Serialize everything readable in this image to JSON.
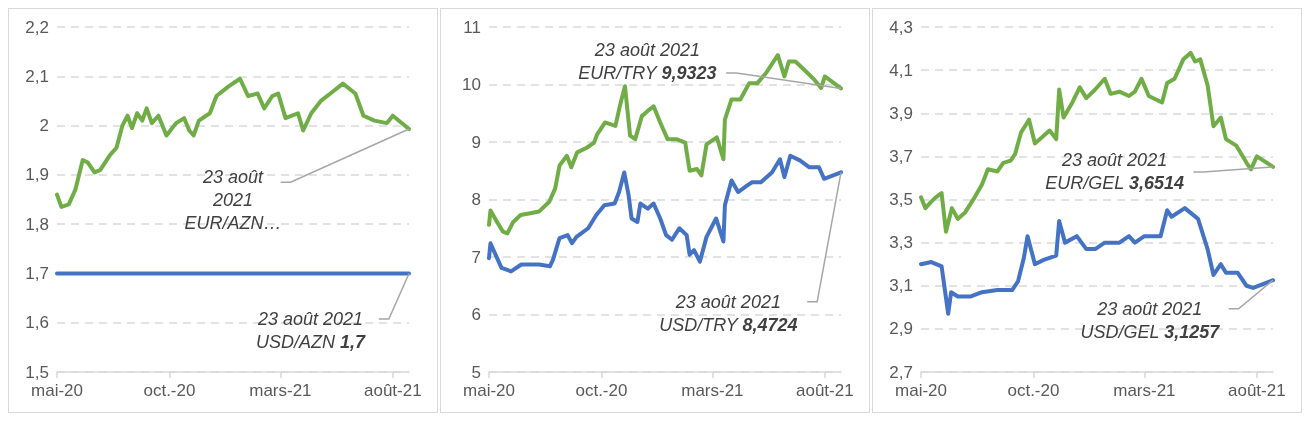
{
  "chart_data": [
    {
      "type": "line",
      "xlim": [
        "2020-05-01",
        "2021-08-23"
      ],
      "xticks": [
        {
          "value": "2020-05-01",
          "label": "mai-20"
        },
        {
          "value": "2020-10-01",
          "label": "oct.-20"
        },
        {
          "value": "2021-03-01",
          "label": "mars-21"
        },
        {
          "value": "2021-08-01",
          "label": "août-21"
        }
      ],
      "ylim": [
        1.5,
        2.2
      ],
      "yticks": [
        {
          "value": 1.5,
          "label": "1,5"
        },
        {
          "value": 1.6,
          "label": "1,6"
        },
        {
          "value": 1.7,
          "label": "1,7"
        },
        {
          "value": 1.8,
          "label": "1,8"
        },
        {
          "value": 1.9,
          "label": "1,9"
        },
        {
          "value": 2,
          "label": "2"
        },
        {
          "value": 2.1,
          "label": "2,1"
        },
        {
          "value": 2.2,
          "label": "2,2"
        }
      ],
      "grid": "y",
      "marker": "none",
      "line_style": "solid",
      "series": [
        {
          "color": "#70ad47",
          "x": [
            "2020-05-01",
            "2020-05-07",
            "2020-05-17",
            "2020-05-26",
            "2020-06-05",
            "2020-06-12",
            "2020-06-21",
            "2020-06-29",
            "2020-07-12",
            "2020-07-21",
            "2020-07-29",
            "2020-08-05",
            "2020-08-11",
            "2020-08-18",
            "2020-08-25",
            "2020-08-31",
            "2020-09-07",
            "2020-09-16",
            "2020-09-27",
            "2020-10-10",
            "2020-10-21",
            "2020-10-28",
            "2020-11-03",
            "2020-11-10",
            "2020-11-25",
            "2020-12-04",
            "2020-12-21",
            "2021-01-05",
            "2021-01-16",
            "2021-01-29",
            "2021-02-07",
            "2021-02-18",
            "2021-02-26",
            "2021-03-08",
            "2021-03-25",
            "2021-04-01",
            "2021-04-12",
            "2021-04-25",
            "2021-05-08",
            "2021-05-25",
            "2021-06-11",
            "2021-06-22",
            "2021-07-07",
            "2021-07-24",
            "2021-08-01",
            "2021-08-23"
          ],
          "values": [
            1.86,
            1.835,
            1.84,
            1.87,
            1.93,
            1.925,
            1.905,
            1.91,
            1.94,
            1.955,
            2.0,
            2.02,
            1.995,
            2.025,
            2.01,
            2.035,
            2.005,
            2.02,
            1.98,
            2.005,
            2.015,
            1.99,
            1.98,
            2.01,
            2.025,
            2.06,
            2.08,
            2.095,
            2.06,
            2.065,
            2.035,
            2.06,
            2.065,
            2.015,
            2.025,
            1.99,
            2.025,
            2.05,
            2.065,
            2.085,
            2.065,
            2.02,
            2.01,
            2.005,
            2.02,
            1.993
          ]
        },
        {
          "color": "#4472c4",
          "x": [
            "2020-05-01",
            "2021-08-23"
          ],
          "values": [
            1.7,
            1.7
          ]
        }
      ],
      "annotations": [
        {
          "text": "23 août\n2021\nEUR/AZN…",
          "x": "2021-08-23",
          "y": 1.993
        },
        {
          "text": "23 août 2021\nUSD/AZN 1,7",
          "x": "2021-08-23",
          "y": 1.7
        }
      ]
    },
    {
      "type": "line",
      "xlim": [
        "2020-05-01",
        "2021-08-23"
      ],
      "xticks": [
        {
          "value": "2020-05-01",
          "label": "mai-20"
        },
        {
          "value": "2020-10-01",
          "label": "oct.-20"
        },
        {
          "value": "2021-03-01",
          "label": "mars-21"
        },
        {
          "value": "2021-08-01",
          "label": "août-21"
        }
      ],
      "ylim": [
        5,
        11
      ],
      "yticks": [
        5,
        6,
        7,
        8,
        9,
        10,
        11
      ],
      "grid": "y",
      "marker": "none",
      "line_style": "solid",
      "series": [
        {
          "color": "#70ad47",
          "x": [
            "2020-05-01",
            "2020-05-03",
            "2020-05-12",
            "2020-05-20",
            "2020-05-26",
            "2020-06-03",
            "2020-06-13",
            "2020-06-26",
            "2020-07-08",
            "2020-07-22",
            "2020-07-30",
            "2020-08-05",
            "2020-08-15",
            "2020-08-21",
            "2020-08-29",
            "2020-09-11",
            "2020-09-21",
            "2020-09-25",
            "2020-10-06",
            "2020-10-20",
            "2020-10-26",
            "2020-11-02",
            "2020-11-09",
            "2020-11-16",
            "2020-11-25",
            "2020-12-03",
            "2020-12-11",
            "2020-12-20",
            "2020-12-30",
            "2021-01-11",
            "2021-01-23",
            "2021-01-29",
            "2021-02-08",
            "2021-02-14",
            "2021-02-21",
            "2021-03-07",
            "2021-03-16",
            "2021-03-18",
            "2021-03-27",
            "2021-04-08",
            "2021-04-20",
            "2021-05-01",
            "2021-05-13",
            "2021-05-29",
            "2021-06-07",
            "2021-06-13",
            "2021-06-22",
            "2021-07-06",
            "2021-07-18",
            "2021-07-27",
            "2021-08-01",
            "2021-08-23"
          ],
          "values": [
            7.56,
            7.81,
            7.61,
            7.44,
            7.41,
            7.61,
            7.73,
            7.76,
            7.79,
            7.96,
            8.19,
            8.59,
            8.76,
            8.56,
            8.82,
            8.9,
            8.99,
            9.13,
            9.34,
            9.28,
            9.62,
            9.97,
            9.11,
            9.05,
            9.45,
            9.54,
            9.62,
            9.34,
            9.05,
            9.05,
            8.99,
            8.5,
            8.53,
            8.42,
            8.96,
            9.08,
            8.7,
            9.39,
            9.74,
            9.74,
            10.02,
            10.02,
            10.2,
            10.51,
            10.14,
            10.4,
            10.4,
            10.23,
            10.08,
            9.94,
            10.14,
            9.9323
          ]
        },
        {
          "color": "#4472c4",
          "x": [
            "2020-05-01",
            "2020-05-03",
            "2020-05-12",
            "2020-05-18",
            "2020-05-31",
            "2020-06-14",
            "2020-07-08",
            "2020-07-23",
            "2020-07-27",
            "2020-08-05",
            "2020-08-16",
            "2020-08-22",
            "2020-08-28",
            "2020-09-13",
            "2020-09-24",
            "2020-10-05",
            "2020-10-19",
            "2020-10-25",
            "2020-11-01",
            "2020-11-07",
            "2020-11-11",
            "2020-11-19",
            "2020-11-23",
            "2020-12-03",
            "2020-12-11",
            "2020-12-20",
            "2020-12-28",
            "2021-01-05",
            "2021-01-15",
            "2021-01-25",
            "2021-01-29",
            "2021-02-04",
            "2021-02-12",
            "2021-02-21",
            "2021-03-06",
            "2021-03-16",
            "2021-03-18",
            "2021-03-27",
            "2021-04-05",
            "2021-04-17",
            "2021-04-24",
            "2021-05-06",
            "2021-05-21",
            "2021-06-01",
            "2021-06-07",
            "2021-06-15",
            "2021-06-28",
            "2021-07-11",
            "2021-07-24",
            "2021-07-31",
            "2021-08-23"
          ],
          "values": [
            6.98,
            7.24,
            6.98,
            6.81,
            6.75,
            6.87,
            6.87,
            6.84,
            6.95,
            7.33,
            7.38,
            7.24,
            7.35,
            7.5,
            7.73,
            7.9,
            7.93,
            8.13,
            8.47,
            8.07,
            7.67,
            7.61,
            7.93,
            7.84,
            7.93,
            7.67,
            7.38,
            7.3,
            7.5,
            7.38,
            7.04,
            7.12,
            6.92,
            7.35,
            7.67,
            7.27,
            7.9,
            8.33,
            8.13,
            8.24,
            8.3,
            8.3,
            8.47,
            8.7,
            8.39,
            8.76,
            8.68,
            8.56,
            8.56,
            8.36,
            8.4724
          ]
        }
      ],
      "annotations": [
        {
          "text": "23 août 2021\nEUR/TRY 9,9323",
          "x": "2021-08-23",
          "y": 9.9323
        },
        {
          "text": "23 août 2021\nUSD/TRY 8,4724",
          "x": "2021-08-23",
          "y": 8.4724
        }
      ]
    },
    {
      "type": "line",
      "xlim": [
        "2020-05-01",
        "2021-08-23"
      ],
      "xticks": [
        {
          "value": "2020-05-01",
          "label": "mai-20"
        },
        {
          "value": "2020-10-01",
          "label": "oct.-20"
        },
        {
          "value": "2021-03-01",
          "label": "mars-21"
        },
        {
          "value": "2021-08-01",
          "label": "août-21"
        }
      ],
      "ylim": [
        2.7,
        4.3
      ],
      "yticks": [
        {
          "value": 2.7,
          "label": "2,7"
        },
        {
          "value": 2.9,
          "label": "2,9"
        },
        {
          "value": 3.1,
          "label": "3,1"
        },
        {
          "value": 3.3,
          "label": "3,3"
        },
        {
          "value": 3.5,
          "label": "3,5"
        },
        {
          "value": 3.7,
          "label": "3,7"
        },
        {
          "value": 3.9,
          "label": "3,9"
        },
        {
          "value": 4.1,
          "label": "4,1"
        },
        {
          "value": 4.3,
          "label": "4,3"
        }
      ],
      "grid": "y",
      "marker": "none",
      "line_style": "solid",
      "series": [
        {
          "color": "#70ad47",
          "x": [
            "2020-05-01",
            "2020-05-07",
            "2020-05-15",
            "2020-05-21",
            "2020-05-29",
            "2020-06-04",
            "2020-06-12",
            "2020-06-20",
            "2020-06-30",
            "2020-07-13",
            "2020-07-23",
            "2020-07-31",
            "2020-08-13",
            "2020-08-21",
            "2020-08-31",
            "2020-09-06",
            "2020-09-14",
            "2020-09-25",
            "2020-10-03",
            "2020-10-13",
            "2020-10-23",
            "2020-11-01",
            "2020-11-05",
            "2020-11-11",
            "2020-11-23",
            "2020-12-03",
            "2020-12-12",
            "2020-12-24",
            "2021-01-06",
            "2021-01-14",
            "2021-01-26",
            "2021-02-08",
            "2021-02-16",
            "2021-02-25",
            "2021-03-07",
            "2021-03-25",
            "2021-04-01",
            "2021-04-11",
            "2021-04-23",
            "2021-05-03",
            "2021-05-09",
            "2021-05-16",
            "2021-05-26",
            "2021-06-03",
            "2021-06-13",
            "2021-06-20",
            "2021-07-04",
            "2021-07-18",
            "2021-07-24",
            "2021-08-01",
            "2021-08-23"
          ],
          "values": [
            3.51,
            3.46,
            3.49,
            3.51,
            3.53,
            3.35,
            3.46,
            3.41,
            3.44,
            3.51,
            3.57,
            3.64,
            3.63,
            3.67,
            3.68,
            3.71,
            3.81,
            3.87,
            3.76,
            3.79,
            3.82,
            3.78,
            4.01,
            3.88,
            3.95,
            4.02,
            3.97,
            4.01,
            4.06,
            3.99,
            4.0,
            3.98,
            4.0,
            4.06,
            3.98,
            3.95,
            4.04,
            4.06,
            4.15,
            4.18,
            4.14,
            4.15,
            4.03,
            3.84,
            3.88,
            3.78,
            3.75,
            3.67,
            3.64,
            3.7,
            3.6514
          ]
        },
        {
          "color": "#4472c4",
          "x": [
            "2020-05-01",
            "2020-05-15",
            "2020-05-29",
            "2020-06-07",
            "2020-06-11",
            "2020-06-20",
            "2020-07-07",
            "2020-07-23",
            "2020-08-13",
            "2020-09-02",
            "2020-09-10",
            "2020-09-18",
            "2020-09-23",
            "2020-10-03",
            "2020-10-15",
            "2020-11-01",
            "2020-11-05",
            "2020-11-13",
            "2020-11-29",
            "2020-12-12",
            "2020-12-24",
            "2021-01-06",
            "2021-01-26",
            "2021-02-08",
            "2021-02-16",
            "2021-03-01",
            "2021-03-23",
            "2021-04-01",
            "2021-04-07",
            "2021-04-25",
            "2021-05-13",
            "2021-05-26",
            "2021-06-03",
            "2021-06-13",
            "2021-06-20",
            "2021-07-06",
            "2021-07-18",
            "2021-07-27",
            "2021-08-23"
          ],
          "values": [
            3.2,
            3.21,
            3.19,
            2.97,
            3.07,
            3.05,
            3.05,
            3.07,
            3.08,
            3.08,
            3.12,
            3.23,
            3.33,
            3.2,
            3.22,
            3.24,
            3.4,
            3.3,
            3.33,
            3.27,
            3.27,
            3.3,
            3.3,
            3.33,
            3.3,
            3.33,
            3.33,
            3.45,
            3.42,
            3.46,
            3.41,
            3.27,
            3.15,
            3.2,
            3.16,
            3.16,
            3.1,
            3.09,
            3.1257
          ]
        }
      ],
      "annotations": [
        {
          "text": "23 août 2021\nEUR/GEL 3,6514",
          "x": "2021-08-23",
          "y": 3.6514
        },
        {
          "text": "23 août 2021\nUSD/GEL 3,1257",
          "x": "2021-08-23",
          "y": 3.1257
        }
      ]
    }
  ]
}
